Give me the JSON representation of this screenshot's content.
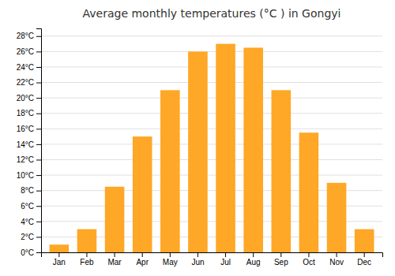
{
  "chart_data": {
    "type": "bar",
    "title": "Average monthly temperatures (°C ) in Gongyi",
    "categories": [
      "Jan",
      "Feb",
      "Mar",
      "Apr",
      "May",
      "Jun",
      "Jul",
      "Aug",
      "Sep",
      "Oct",
      "Nov",
      "Dec"
    ],
    "values": [
      1,
      3,
      8.5,
      15,
      21,
      26,
      27,
      26.5,
      21,
      15.5,
      9,
      3
    ],
    "color": "#FFA726",
    "ylim": [
      0,
      29
    ],
    "yticks": [
      {
        "value": 0,
        "label": "0°C"
      },
      {
        "value": 2,
        "label": "2°C"
      },
      {
        "value": 4,
        "label": "4°C"
      },
      {
        "value": 6,
        "label": "6°C"
      },
      {
        "value": 8,
        "label": "8°C"
      },
      {
        "value": 10,
        "label": "10°C"
      },
      {
        "value": 12,
        "label": "12°C"
      },
      {
        "value": 14,
        "label": "14°C"
      },
      {
        "value": 16,
        "label": "16°C"
      },
      {
        "value": 18,
        "label": "18°C"
      },
      {
        "value": 20,
        "label": "20°C"
      },
      {
        "value": 22,
        "label": "22°C"
      },
      {
        "value": 24,
        "label": "24°C"
      },
      {
        "value": 26,
        "label": "26°C"
      },
      {
        "value": 28,
        "label": "28°C"
      }
    ],
    "grid": true
  }
}
